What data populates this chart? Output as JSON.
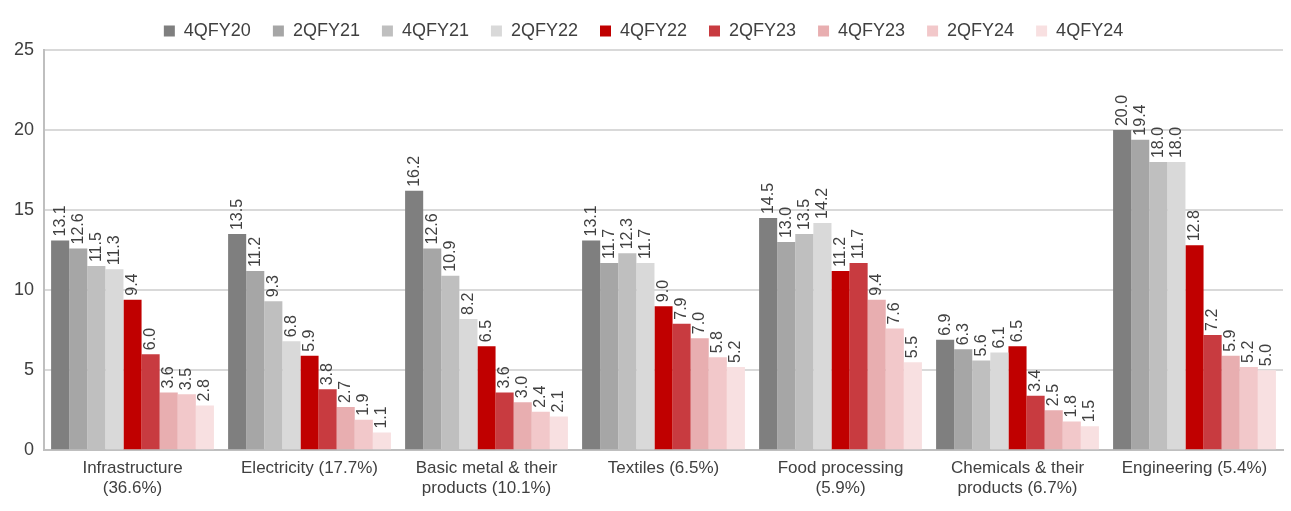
{
  "chart_data": {
    "type": "bar",
    "categories": [
      "Infrastructure (36.6%)",
      "Electricity (17.7%)",
      "Basic metal & their products (10.1%)",
      "Textiles (6.5%)",
      "Food processing (5.9%)",
      "Chemicals & their products (6.7%)",
      "Engineering (5.4%)"
    ],
    "series": [
      {
        "name": "4QFY20",
        "color": "#7f7f7f",
        "values": [
          13.1,
          13.5,
          16.2,
          13.1,
          14.5,
          6.9,
          20.0
        ],
        "value_labels": [
          "13.1",
          "13.5",
          "16.2",
          "13.1",
          "14.5",
          "6.9",
          "20.0"
        ]
      },
      {
        "name": "2QFY21",
        "color": "#a6a6a6",
        "values": [
          12.6,
          11.2,
          12.6,
          11.7,
          13.0,
          6.3,
          19.4
        ],
        "value_labels": [
          "12.6",
          "11.2",
          "12.6",
          "11.7",
          "13.0",
          "6.3",
          "19.4"
        ]
      },
      {
        "name": "4QFY21",
        "color": "#bfbfbf",
        "values": [
          11.5,
          9.3,
          10.9,
          12.3,
          13.5,
          5.6,
          18.0
        ],
        "value_labels": [
          "11.5",
          "9.3",
          "10.9",
          "12.3",
          "13.5",
          "5.6",
          "18.0"
        ]
      },
      {
        "name": "2QFY22",
        "color": "#d9d9d9",
        "values": [
          11.3,
          6.8,
          8.2,
          11.7,
          14.2,
          6.1,
          18.0
        ],
        "value_labels": [
          "11.3",
          "6.8",
          "8.2",
          "11.7",
          "14.2",
          "6.1",
          "18.0"
        ]
      },
      {
        "name": "4QFY22",
        "color": "#c00000",
        "values": [
          9.4,
          5.9,
          6.5,
          9.0,
          11.2,
          6.5,
          12.8
        ],
        "value_labels": [
          "9.4",
          "5.9",
          "6.5",
          "9.0",
          "11.2",
          "6.5",
          "12.8"
        ]
      },
      {
        "name": "2QFY23",
        "color": "#c83b40",
        "values": [
          6.0,
          3.8,
          3.6,
          7.9,
          11.7,
          3.4,
          7.2
        ],
        "value_labels": [
          "6.0",
          "3.8",
          "3.6",
          "7.9",
          "11.7",
          "3.4",
          "7.2"
        ]
      },
      {
        "name": "4QFY23",
        "color": "#e8aeb0",
        "values": [
          3.6,
          2.7,
          3.0,
          7.0,
          9.4,
          2.5,
          5.9
        ],
        "value_labels": [
          "3.6",
          "2.7",
          "3.0",
          "7.0",
          "9.4",
          "2.5",
          "5.9"
        ]
      },
      {
        "name": "2QFY24",
        "color": "#f2c8ca",
        "values": [
          3.5,
          1.9,
          2.4,
          5.8,
          7.6,
          1.8,
          5.2
        ],
        "value_labels": [
          "3.5",
          "1.9",
          "2.4",
          "5.8",
          "7.6",
          "1.8",
          "5.2"
        ]
      },
      {
        "name": "4QFY24",
        "color": "#f8e0e1",
        "values": [
          2.8,
          1.1,
          2.1,
          5.2,
          5.5,
          1.5,
          5.0
        ],
        "value_labels": [
          "2.8",
          "1.1",
          "2.1",
          "5.2",
          "5.5",
          "1.5",
          "5.0"
        ]
      }
    ],
    "ylim": [
      0,
      25
    ],
    "yticks": [
      0,
      5,
      10,
      15,
      20,
      25
    ],
    "grid": "y",
    "legend": "top"
  }
}
